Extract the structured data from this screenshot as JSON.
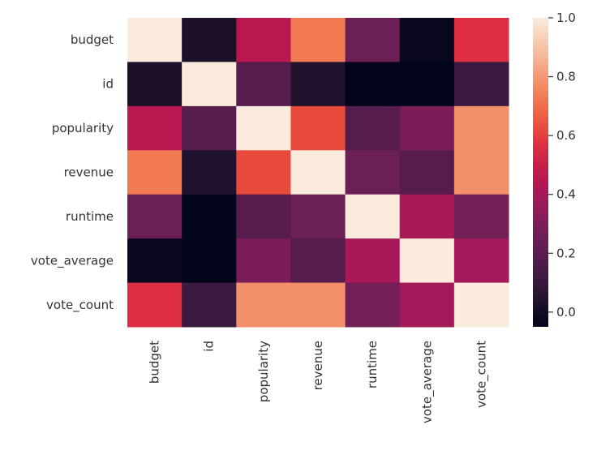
{
  "chart_data": {
    "type": "heatmap",
    "title": "",
    "xlabel": "",
    "ylabel": "",
    "colormap": "rocket",
    "x_labels": [
      "budget",
      "id",
      "popularity",
      "revenue",
      "runtime",
      "vote_average",
      "vote_count"
    ],
    "y_labels": [
      "budget",
      "id",
      "popularity",
      "revenue",
      "runtime",
      "vote_average",
      "vote_count"
    ],
    "values": [
      [
        1.0,
        0.03,
        0.45,
        0.73,
        0.25,
        -0.03,
        0.57
      ],
      [
        0.03,
        1.0,
        0.19,
        0.04,
        -0.05,
        -0.05,
        0.1
      ],
      [
        0.45,
        0.19,
        1.0,
        0.62,
        0.19,
        0.3,
        0.78
      ],
      [
        0.73,
        0.04,
        0.62,
        1.0,
        0.25,
        0.19,
        0.78
      ],
      [
        0.25,
        -0.05,
        0.19,
        0.25,
        1.0,
        0.4,
        0.27
      ],
      [
        -0.03,
        -0.05,
        0.3,
        0.19,
        0.4,
        1.0,
        0.39
      ],
      [
        0.57,
        0.1,
        0.78,
        0.78,
        0.27,
        0.39,
        1.0
      ]
    ],
    "colorbar": {
      "range": [
        -0.05,
        1.0
      ],
      "ticks": [
        "0.0",
        "0.2",
        "0.4",
        "0.6",
        "0.8",
        "1.0"
      ]
    }
  }
}
